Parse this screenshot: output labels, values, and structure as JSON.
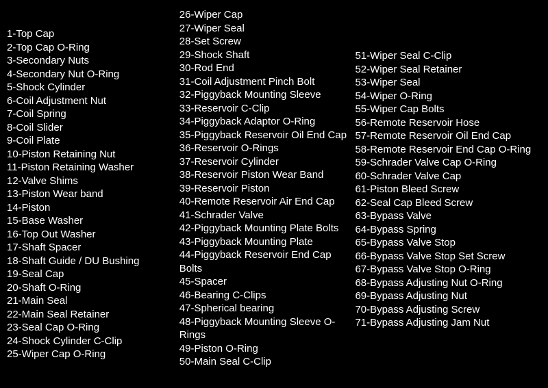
{
  "parts_list": {
    "column1": [
      {
        "num": 1,
        "name": "Top Cap"
      },
      {
        "num": 2,
        "name": "Top Cap O-Ring"
      },
      {
        "num": 3,
        "name": "Secondary Nuts"
      },
      {
        "num": 4,
        "name": "Secondary Nut O-Ring"
      },
      {
        "num": 5,
        "name": "Shock Cylinder"
      },
      {
        "num": 6,
        "name": "Coil Adjustment Nut"
      },
      {
        "num": 7,
        "name": "Coil Spring"
      },
      {
        "num": 8,
        "name": "Coil Slider"
      },
      {
        "num": 9,
        "name": "Coil Plate"
      },
      {
        "num": 10,
        "name": "Piston Retaining Nut"
      },
      {
        "num": 11,
        "name": "Piston Retaining Washer"
      },
      {
        "num": 12,
        "name": "Valve Shims"
      },
      {
        "num": 13,
        "name": "Piston Wear band"
      },
      {
        "num": 14,
        "name": "Piston"
      },
      {
        "num": 15,
        "name": "Base Washer"
      },
      {
        "num": 16,
        "name": "Top Out Washer"
      },
      {
        "num": 17,
        "name": "Shaft Spacer"
      },
      {
        "num": 18,
        "name": "Shaft Guide / DU Bushing"
      },
      {
        "num": 19,
        "name": "Seal Cap"
      },
      {
        "num": 20,
        "name": "Shaft O-Ring"
      },
      {
        "num": 21,
        "name": "Main Seal"
      },
      {
        "num": 22,
        "name": "Main Seal Retainer"
      },
      {
        "num": 23,
        "name": "Seal Cap O-Ring"
      },
      {
        "num": 24,
        "name": "Shock Cylinder C-Clip"
      },
      {
        "num": 25,
        "name": "Wiper Cap O-Ring"
      }
    ],
    "column2": [
      {
        "num": 26,
        "name": "Wiper Cap"
      },
      {
        "num": 27,
        "name": "Wiper Seal"
      },
      {
        "num": 28,
        "name": "Set Screw"
      },
      {
        "num": 29,
        "name": "Shock Shaft"
      },
      {
        "num": 30,
        "name": "Rod End"
      },
      {
        "num": 31,
        "name": "Coil Adjustment Pinch Bolt"
      },
      {
        "num": 32,
        "name": "Piggyback Mounting Sleeve"
      },
      {
        "num": 33,
        "name": "Reservoir C-Clip"
      },
      {
        "num": 34,
        "name": "Piggyback Adaptor O-Ring"
      },
      {
        "num": 35,
        "name": "Piggyback Reservoir Oil End Cap"
      },
      {
        "num": 36,
        "name": "Reservoir O-Rings"
      },
      {
        "num": 37,
        "name": "Reservoir Cylinder"
      },
      {
        "num": 38,
        "name": "Reservoir Piston Wear Band"
      },
      {
        "num": 39,
        "name": "Reservoir Piston"
      },
      {
        "num": 40,
        "name": "Remote Reservoir Air End Cap"
      },
      {
        "num": 41,
        "name": "Schrader Valve"
      },
      {
        "num": 42,
        "name": "Piggyback Mounting Plate Bolts"
      },
      {
        "num": 43,
        "name": "Piggyback Mounting Plate"
      },
      {
        "num": 44,
        "name": "Piggyback Reservoir End Cap Bolts"
      },
      {
        "num": 45,
        "name": "Spacer"
      },
      {
        "num": 46,
        "name": "Bearing C-Clips"
      },
      {
        "num": 47,
        "name": "Spherical bearing"
      },
      {
        "num": 48,
        "name": "Piggyback Mounting Sleeve O-Rings"
      },
      {
        "num": 49,
        "name": "Piston O-Ring"
      },
      {
        "num": 50,
        "name": "Main Seal C-Clip"
      }
    ],
    "column3": [
      {
        "num": 51,
        "name": "Wiper Seal C-Clip"
      },
      {
        "num": 52,
        "name": "Wiper Seal Retainer"
      },
      {
        "num": 53,
        "name": "Wiper Seal"
      },
      {
        "num": 54,
        "name": "Wiper O-Ring"
      },
      {
        "num": 55,
        "name": "Wiper Cap Bolts"
      },
      {
        "num": 56,
        "name": "Remote Reservoir Hose"
      },
      {
        "num": 57,
        "name": "Remote Reservoir Oil End Cap"
      },
      {
        "num": 58,
        "name": "Remote Reservoir End Cap O-Ring"
      },
      {
        "num": 59,
        "name": "Schrader Valve Cap O-Ring"
      },
      {
        "num": 60,
        "name": "Schrader Valve Cap"
      },
      {
        "num": 61,
        "name": "Piston Bleed Screw"
      },
      {
        "num": 62,
        "name": "Seal Cap Bleed Screw"
      },
      {
        "num": 63,
        "name": "Bypass Valve"
      },
      {
        "num": 64,
        "name": "Bypass Spring"
      },
      {
        "num": 65,
        "name": "Bypass Valve Stop"
      },
      {
        "num": 66,
        "name": "Bypass Valve Stop Set Screw"
      },
      {
        "num": 67,
        "name": "Bypass Valve Stop O-Ring"
      },
      {
        "num": 68,
        "name": "Bypass Adjusting Nut O-Ring"
      },
      {
        "num": 69,
        "name": "Bypass Adjusting Nut"
      },
      {
        "num": 70,
        "name": "Bypass Adjusting Screw"
      },
      {
        "num": 71,
        "name": "Bypass Adjusting Jam Nut"
      }
    ]
  },
  "style": {
    "background_color": "#000000",
    "text_color": "#ffffff",
    "font_size": 15,
    "line_height": 19.5,
    "font_family": "Arial, sans-serif"
  }
}
